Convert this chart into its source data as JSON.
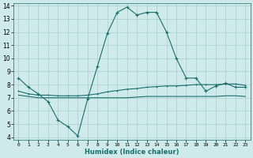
{
  "xlabel": "Humidex (Indice chaleur)",
  "ylabel": "",
  "xlim": [
    -0.5,
    23.5
  ],
  "ylim": [
    3.8,
    14.2
  ],
  "background_color": "#ceeaea",
  "grid_color": "#aacece",
  "line_color": "#1a6e6e",
  "line1": {
    "x": [
      0,
      1,
      2,
      3,
      4,
      5,
      6,
      7,
      8,
      9,
      10,
      11,
      12,
      13,
      14,
      15,
      16,
      17,
      18,
      19,
      20,
      21,
      22,
      23
    ],
    "y": [
      8.5,
      7.8,
      7.3,
      6.7,
      5.3,
      4.8,
      4.1,
      6.9,
      9.4,
      11.9,
      13.5,
      13.9,
      13.3,
      13.5,
      13.5,
      12.0,
      10.0,
      8.5,
      8.5,
      7.5,
      7.9,
      8.1,
      7.8,
      7.8
    ]
  },
  "line2": {
    "x": [
      0,
      1,
      2,
      3,
      4,
      5,
      6,
      7,
      8,
      9,
      10,
      11,
      12,
      13,
      14,
      15,
      16,
      17,
      18,
      19,
      20,
      21,
      22,
      23
    ],
    "y": [
      7.5,
      7.3,
      7.2,
      7.2,
      7.15,
      7.15,
      7.15,
      7.2,
      7.3,
      7.45,
      7.55,
      7.65,
      7.7,
      7.8,
      7.85,
      7.9,
      7.9,
      7.95,
      8.0,
      8.0,
      8.0,
      8.05,
      8.05,
      7.95
    ]
  },
  "line3": {
    "x": [
      0,
      1,
      2,
      3,
      4,
      5,
      6,
      7,
      8,
      9,
      10,
      11,
      12,
      13,
      14,
      15,
      16,
      17,
      18,
      19,
      20,
      21,
      22,
      23
    ],
    "y": [
      7.2,
      7.1,
      7.0,
      7.0,
      7.0,
      7.0,
      7.0,
      7.0,
      7.0,
      7.0,
      7.0,
      7.0,
      7.05,
      7.1,
      7.1,
      7.1,
      7.1,
      7.1,
      7.1,
      7.1,
      7.1,
      7.15,
      7.15,
      7.1
    ]
  },
  "yticks": [
    4,
    5,
    6,
    7,
    8,
    9,
    10,
    11,
    12,
    13,
    14
  ]
}
